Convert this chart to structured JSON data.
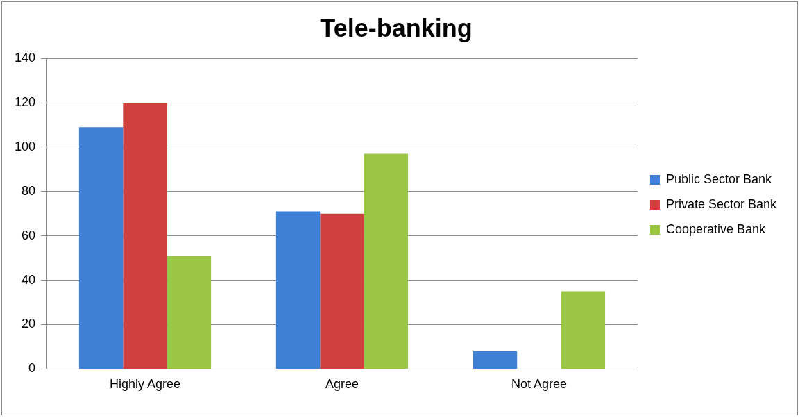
{
  "chart_data": {
    "type": "bar",
    "title": "Tele-banking",
    "categories": [
      "Highly Agree",
      "Agree",
      "Not Agree"
    ],
    "series": [
      {
        "name": "Public Sector Bank",
        "color": "#3f7fd4",
        "values": [
          109,
          71,
          8
        ]
      },
      {
        "name": "Private Sector Bank",
        "color": "#d0403c",
        "values": [
          120,
          70,
          0
        ]
      },
      {
        "name": "Cooperative Bank",
        "color": "#9bc545",
        "values": [
          51,
          97,
          35
        ]
      }
    ],
    "ylim": [
      0,
      140
    ],
    "yticks": [
      0,
      20,
      40,
      60,
      80,
      100,
      120,
      140
    ],
    "grid": "y",
    "legend": "right"
  }
}
